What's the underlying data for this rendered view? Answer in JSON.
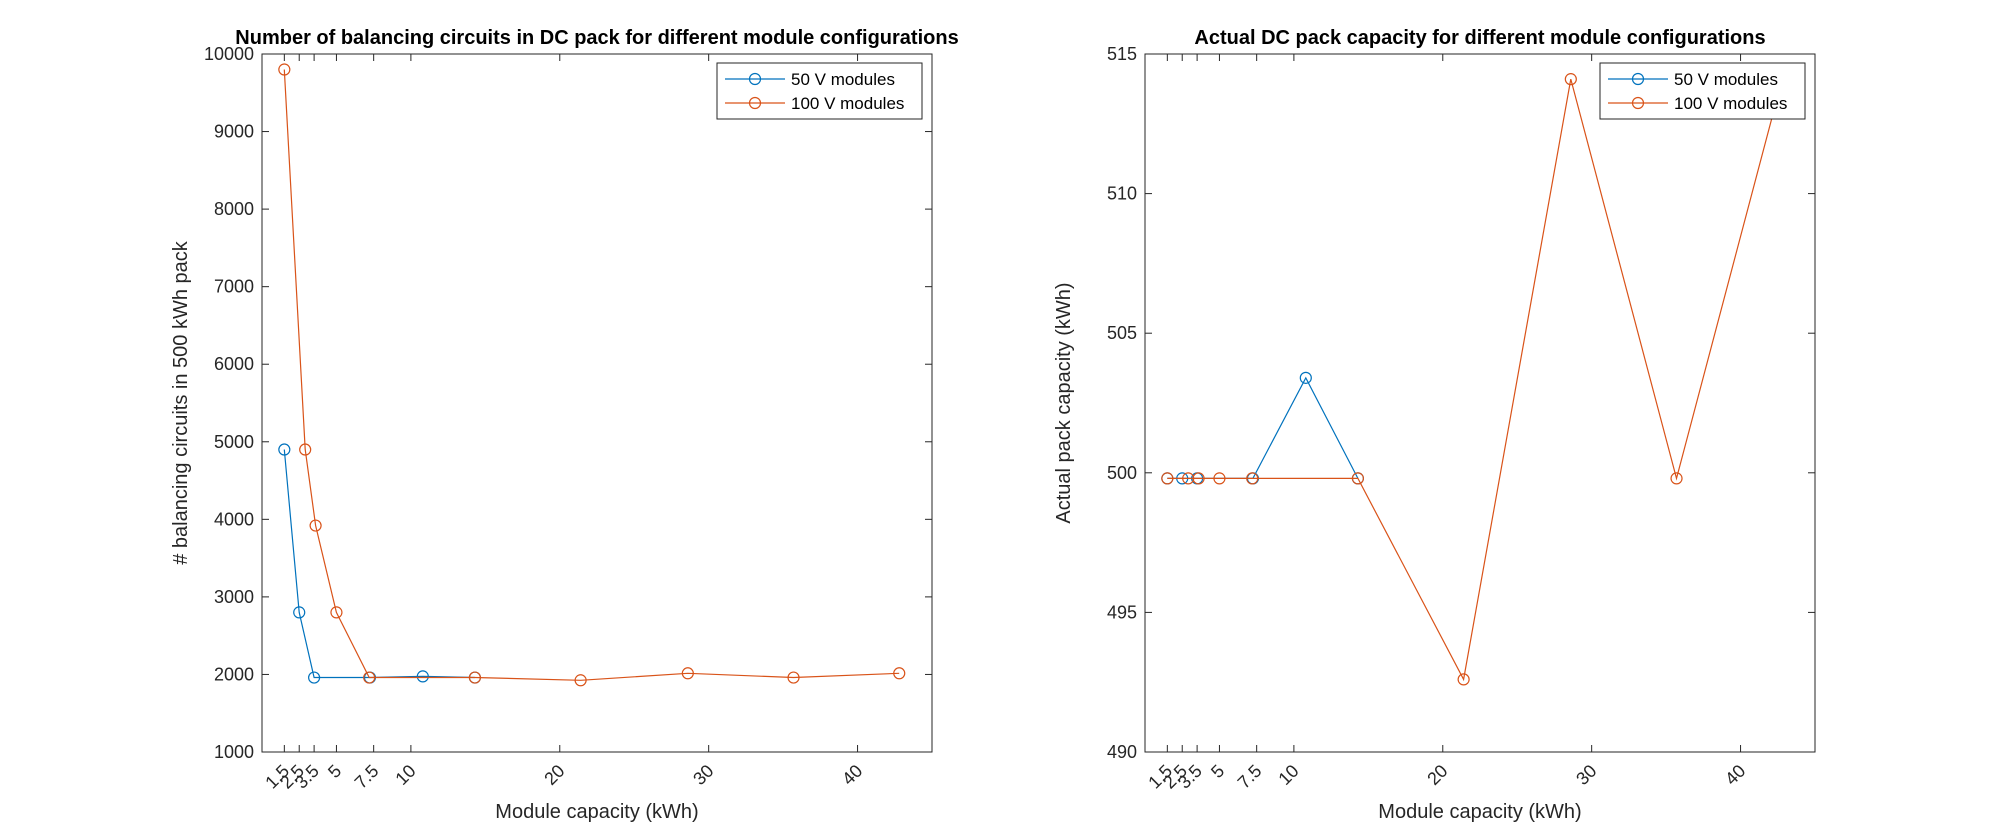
{
  "chart_data": [
    {
      "type": "line",
      "title": "Number of balancing circuits in DC pack for different module configurations",
      "xlabel": "Module capacity (kWh)",
      "ylabel": "# balancing circuits in 500 kWh pack",
      "xlim": [
        0,
        45
      ],
      "ylim": [
        1000,
        10000
      ],
      "xticks": [
        1.5,
        2.5,
        3.5,
        5,
        7.5,
        10,
        20,
        30,
        40
      ],
      "xtick_labels": [
        "1.5",
        "2.5",
        "3.5",
        "5",
        "7.5",
        "10",
        "20",
        "30",
        "40"
      ],
      "yticks": [
        1000,
        2000,
        3000,
        4000,
        5000,
        6000,
        7000,
        8000,
        9000,
        10000
      ],
      "ytick_labels": [
        "1000",
        "2000",
        "3000",
        "4000",
        "5000",
        "6000",
        "7000",
        "8000",
        "9000",
        "10000"
      ],
      "grid": false,
      "legend_position": "top-right",
      "series": [
        {
          "name": "50 V modules",
          "color": "#0072BD",
          "x": [
            1.5,
            2.5,
            3.5,
            7.25,
            10.8,
            14.3
          ],
          "y": [
            4900,
            2800,
            1960,
            1960,
            1975,
            1960
          ]
        },
        {
          "name": "100 V modules",
          "color": "#D95319",
          "x": [
            1.5,
            2.9,
            3.6,
            5.0,
            7.2,
            14.3,
            21.4,
            28.6,
            35.7,
            42.8
          ],
          "y": [
            9800,
            4900,
            3920,
            2800,
            1960,
            1960,
            1925,
            2015,
            1960,
            2015
          ]
        }
      ]
    },
    {
      "type": "line",
      "title": "Actual DC pack capacity for different module configurations",
      "xlabel": "Module capacity (kWh)",
      "ylabel": "Actual pack capacity (kWh)",
      "xlim": [
        0,
        45
      ],
      "ylim": [
        490,
        515
      ],
      "xticks": [
        1.5,
        2.5,
        3.5,
        5,
        7.5,
        10,
        20,
        30,
        40
      ],
      "xtick_labels": [
        "1.5",
        "2.5",
        "3.5",
        "5",
        "7.5",
        "10",
        "20",
        "30",
        "40"
      ],
      "yticks": [
        490,
        495,
        500,
        505,
        510,
        515
      ],
      "ytick_labels": [
        "490",
        "495",
        "500",
        "505",
        "510",
        "515"
      ],
      "grid": false,
      "legend_position": "top-right",
      "series": [
        {
          "name": "50 V modules",
          "color": "#0072BD",
          "x": [
            1.5,
            2.5,
            3.5,
            7.25,
            10.8,
            14.3
          ],
          "y": [
            499.8,
            499.8,
            499.8,
            499.8,
            503.4,
            499.8
          ]
        },
        {
          "name": "100 V modules",
          "color": "#D95319",
          "x": [
            1.5,
            2.9,
            3.6,
            5.0,
            7.2,
            14.3,
            21.4,
            28.6,
            35.7,
            42.8
          ],
          "y": [
            499.8,
            499.8,
            499.8,
            499.8,
            499.8,
            499.8,
            492.6,
            514.1,
            499.8,
            514.1
          ]
        }
      ]
    }
  ]
}
